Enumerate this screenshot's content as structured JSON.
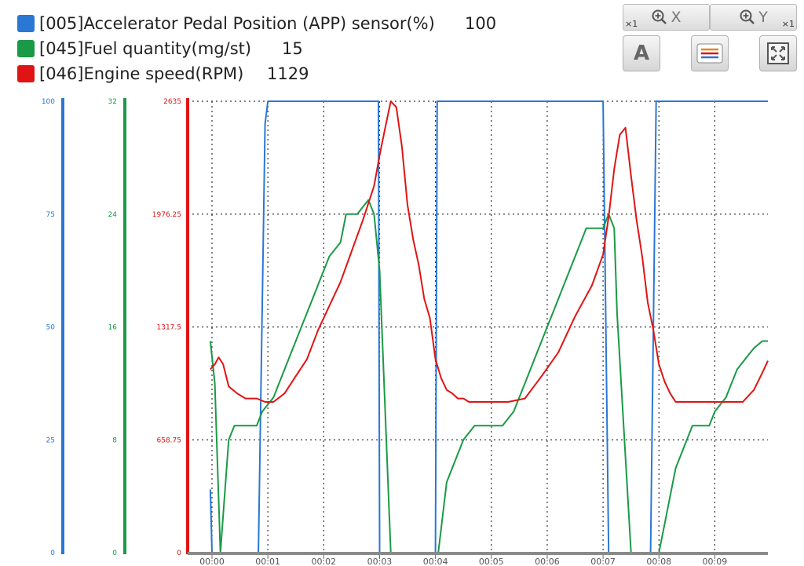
{
  "legend": {
    "items": [
      {
        "label": "[005]Accelerator Pedal Position (APP) sensor(%)",
        "value": "100",
        "color": "#2a77d4"
      },
      {
        "label": "[045]Fuel quantity(mg/st)",
        "value": "15",
        "color": "#1a9a46"
      },
      {
        "label": "[046]Engine speed(RPM)",
        "value": "1129",
        "color": "#e01414"
      }
    ]
  },
  "toolbar": {
    "zoom_x_label": "X",
    "zoom_y_label": "Y",
    "zoom_x_multiplier": "×1",
    "zoom_y_multiplier": "×1",
    "font_button_label": "A",
    "icons": [
      "zoom-x-icon",
      "zoom-y-icon",
      "font-size-icon",
      "series-list-icon",
      "fit-screen-icon"
    ]
  },
  "chart_data": {
    "type": "line",
    "x_ticks": [
      "00:00",
      "00:01",
      "00:02",
      "00:03",
      "00:04",
      "00:05",
      "00:06",
      "00:07",
      "00:08",
      "00:09"
    ],
    "xlim": [
      0,
      9.95
    ],
    "grid": true,
    "axes": [
      {
        "series": "app",
        "color": "#2a77d4",
        "ylim": [
          0,
          100
        ],
        "ticks": [
          "0",
          "25",
          "50",
          "75",
          "100"
        ]
      },
      {
        "series": "fuel",
        "color": "#1a9a46",
        "ylim": [
          0,
          32
        ],
        "ticks": [
          "0",
          "8",
          "16",
          "24",
          "32"
        ]
      },
      {
        "series": "rpm",
        "color": "#e01414",
        "ylim": [
          0,
          2635
        ],
        "ticks": [
          "0",
          "658.75",
          "1317.5",
          "1976.25",
          "2635"
        ]
      }
    ],
    "series": [
      {
        "id": "app",
        "color": "#2a77d4",
        "x": [
          -0.03,
          0.0,
          0.83,
          0.95,
          1.0,
          2.98,
          3.0,
          4.0,
          4.03,
          7.0,
          7.1,
          7.85,
          7.95,
          9.95
        ],
        "y": [
          14,
          0,
          0,
          95,
          100,
          100,
          0,
          0,
          100,
          100,
          0,
          0,
          100,
          100
        ]
      },
      {
        "id": "fuel",
        "color": "#1a9a46",
        "x": [
          -0.03,
          0.05,
          0.15,
          0.3,
          0.4,
          0.8,
          0.9,
          1.0,
          1.1,
          1.2,
          1.3,
          1.4,
          1.5,
          1.6,
          1.7,
          1.8,
          1.9,
          2.0,
          2.1,
          2.2,
          2.3,
          2.4,
          2.5,
          2.6,
          2.7,
          2.8,
          2.9,
          3.0,
          3.1,
          3.2,
          3.3,
          3.6,
          4.05,
          4.2,
          4.3,
          4.4,
          4.5,
          4.6,
          4.7,
          4.8,
          4.9,
          5.2,
          5.3,
          5.4,
          5.5,
          5.6,
          5.7,
          5.8,
          5.9,
          6.0,
          6.1,
          6.2,
          6.3,
          6.4,
          6.5,
          6.6,
          6.7,
          6.8,
          6.9,
          7.0,
          7.1,
          7.2,
          7.25,
          7.5,
          7.9,
          8.0,
          8.1,
          8.2,
          8.3,
          8.4,
          8.5,
          8.6,
          8.9,
          9.0,
          9.1,
          9.2,
          9.3,
          9.4,
          9.5,
          9.6,
          9.7,
          9.85,
          9.95
        ],
        "y": [
          15,
          12,
          0,
          8,
          9,
          9,
          10,
          10.5,
          11,
          12,
          13,
          14,
          15,
          16,
          17,
          18,
          19,
          20,
          21,
          21.5,
          22,
          24,
          24,
          24,
          24.5,
          25,
          24,
          20,
          10,
          0,
          0,
          0,
          0,
          5,
          6,
          7,
          8,
          8.5,
          9,
          9,
          9,
          9,
          9.5,
          10,
          11,
          12,
          13,
          14,
          15,
          16,
          17,
          18,
          19,
          20,
          21,
          22,
          23,
          23,
          23,
          23,
          24,
          23,
          17,
          0,
          0,
          0,
          2,
          4,
          6,
          7,
          8,
          9,
          9,
          10,
          10.5,
          11,
          12,
          13,
          13.5,
          14,
          14.5,
          15,
          15
        ]
      },
      {
        "id": "rpm",
        "color": "#e01414",
        "x": [
          -0.03,
          0.05,
          0.12,
          0.2,
          0.3,
          0.45,
          0.6,
          0.8,
          0.95,
          1.1,
          1.3,
          1.5,
          1.7,
          1.9,
          2.1,
          2.3,
          2.5,
          2.7,
          2.9,
          3.0,
          3.1,
          3.2,
          3.3,
          3.4,
          3.5,
          3.6,
          3.7,
          3.8,
          3.9,
          4.0,
          4.1,
          4.2,
          4.3,
          4.4,
          4.5,
          4.6,
          4.7,
          5.0,
          5.3,
          5.6,
          5.9,
          6.2,
          6.5,
          6.8,
          7.0,
          7.1,
          7.2,
          7.3,
          7.4,
          7.5,
          7.6,
          7.7,
          7.8,
          7.9,
          8.0,
          8.1,
          8.2,
          8.3,
          8.4,
          8.6,
          8.9,
          9.2,
          9.5,
          9.7,
          9.85,
          9.95
        ],
        "y": [
          1070,
          1100,
          1140,
          1100,
          970,
          930,
          900,
          900,
          880,
          880,
          930,
          1030,
          1130,
          1300,
          1440,
          1580,
          1760,
          1940,
          2140,
          2320,
          2480,
          2635,
          2600,
          2370,
          2030,
          1830,
          1680,
          1480,
          1370,
          1130,
          1020,
          950,
          930,
          900,
          900,
          880,
          880,
          880,
          880,
          900,
          1030,
          1170,
          1380,
          1560,
          1740,
          1960,
          2240,
          2440,
          2480,
          2200,
          1940,
          1730,
          1460,
          1300,
          1100,
          1000,
          930,
          880,
          880,
          880,
          880,
          880,
          880,
          950,
          1050,
          1120
        ]
      }
    ]
  }
}
